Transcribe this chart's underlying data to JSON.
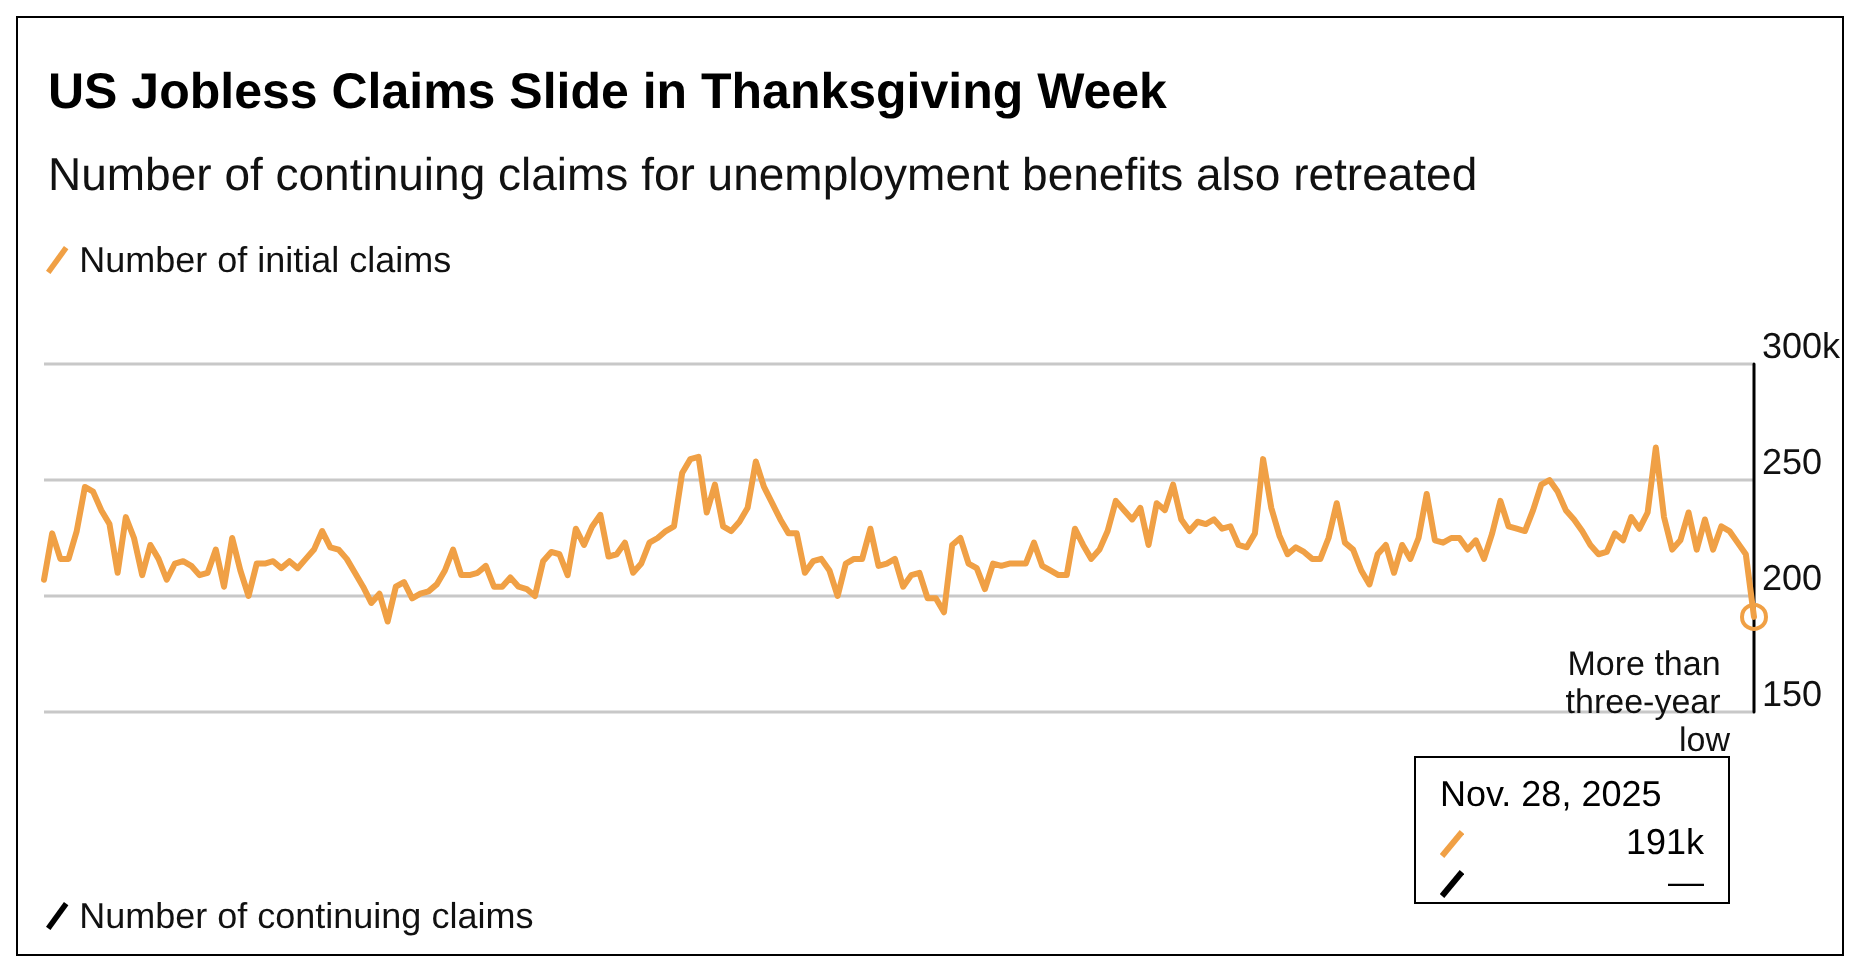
{
  "chart_data": {
    "type": "line",
    "title": "US Jobless Claims Slide in Thanksgiving Week",
    "subtitle": "Number of continuing claims for unemployment benefits also retreated",
    "categories": [
      null,
      null,
      null,
      null,
      null,
      null,
      null,
      null,
      null,
      null,
      null,
      null,
      null,
      null,
      null,
      null,
      null,
      null,
      null,
      null,
      null,
      null,
      null,
      null,
      null,
      null,
      null,
      null,
      null,
      null,
      null,
      null,
      null,
      null,
      null,
      null,
      null,
      null,
      null,
      null,
      null,
      null,
      null,
      null,
      null,
      null,
      null,
      null,
      null,
      null,
      null,
      null,
      null,
      null,
      null,
      null,
      null,
      null,
      null,
      null,
      null,
      null,
      null,
      null,
      null,
      null,
      null,
      null,
      null,
      null,
      null,
      null,
      null,
      null,
      null,
      null,
      null,
      null,
      null,
      null,
      null,
      null,
      null,
      null,
      null,
      null,
      null,
      null,
      null,
      null,
      null,
      null,
      null,
      null,
      null,
      null,
      null,
      null,
      null,
      null,
      null,
      null,
      null,
      null,
      null,
      null,
      null,
      null,
      null,
      null,
      null,
      null,
      null,
      null,
      null,
      null,
      null,
      null,
      null,
      null,
      null,
      null,
      null,
      null,
      null,
      null,
      null,
      null,
      null,
      null,
      null,
      null,
      null,
      null,
      null,
      null,
      null,
      null,
      null,
      null,
      null,
      null,
      null,
      null,
      null,
      null,
      null,
      null,
      null,
      null,
      null,
      null,
      null,
      null,
      null,
      null,
      null,
      null,
      null,
      null,
      null,
      null,
      null,
      null,
      null,
      null,
      null,
      null,
      null,
      null,
      null,
      null,
      null,
      null,
      null,
      null,
      null,
      null,
      null,
      null,
      null,
      null,
      null,
      null,
      null,
      null,
      null,
      null,
      null,
      null,
      null,
      null,
      null,
      null,
      null,
      null,
      null,
      null,
      null,
      null,
      null,
      null,
      null,
      null,
      null,
      null,
      null,
      null,
      null,
      null
    ],
    "series": [
      {
        "name": "Number of initial claims",
        "color": "#f0a045",
        "values": [
          207,
          227,
          216,
          216,
          228,
          247,
          245,
          237,
          231,
          210,
          234,
          225,
          209,
          222,
          216,
          207,
          214,
          215,
          213,
          209,
          210,
          220,
          204,
          225,
          211,
          200,
          214,
          214,
          215,
          212,
          215,
          212,
          216,
          220,
          228,
          221,
          220,
          216,
          210,
          204,
          197,
          201,
          189,
          204,
          206,
          199,
          201,
          202,
          205,
          211,
          220,
          209,
          209,
          210,
          213,
          204,
          204,
          208,
          204,
          203,
          200,
          215,
          219,
          218,
          209,
          229,
          222,
          230,
          235,
          217,
          218,
          223,
          210,
          214,
          223,
          225,
          228,
          230,
          253,
          259,
          260,
          236,
          248,
          230,
          228,
          232,
          238,
          258,
          247,
          240,
          233,
          227,
          227,
          210,
          215,
          216,
          211,
          200,
          214,
          216,
          216,
          229,
          213,
          214,
          216,
          204,
          209,
          210,
          199,
          199,
          193,
          222,
          225,
          214,
          212,
          203,
          214,
          213,
          214,
          214,
          214,
          223,
          213,
          211,
          209,
          209,
          229,
          222,
          216,
          220,
          228,
          241,
          237,
          233,
          238,
          222,
          240,
          237,
          248,
          233,
          228,
          232,
          231,
          233,
          229,
          230,
          222,
          221,
          227,
          259,
          238,
          226,
          218,
          221,
          219,
          216,
          216,
          225,
          240,
          223,
          220,
          211,
          205,
          218,
          222,
          210,
          222,
          216,
          225,
          244,
          224,
          223,
          225,
          225,
          220,
          224,
          216,
          227,
          241,
          230,
          229,
          228,
          237,
          248,
          250,
          245,
          237,
          233,
          228,
          222,
          218,
          219,
          227,
          224,
          234,
          229,
          236,
          264,
          234,
          220,
          224,
          236,
          220,
          233,
          220,
          230,
          228,
          223,
          218,
          191
        ]
      },
      {
        "name": "Number of continuing claims",
        "color": "#000000",
        "values": [
          null,
          null,
          null,
          null,
          null,
          null,
          null,
          null,
          null,
          null,
          null,
          null,
          null,
          null,
          null,
          null,
          null,
          null,
          null,
          null,
          null,
          null,
          null,
          null,
          null,
          null,
          null,
          null,
          null,
          null,
          null,
          null,
          null,
          null,
          null,
          null,
          null,
          null,
          null,
          null,
          null,
          null,
          null,
          null,
          null,
          null,
          null,
          null,
          null,
          null,
          null,
          null,
          null,
          null,
          null,
          null,
          null,
          null,
          null,
          null,
          null,
          null,
          null,
          null,
          null,
          null,
          null,
          null,
          null,
          null,
          null,
          null,
          null,
          null,
          null,
          null,
          null,
          null,
          null,
          null,
          null,
          null,
          null,
          null,
          null,
          null,
          null,
          null,
          null,
          null,
          null,
          null,
          null,
          null,
          null,
          null,
          null,
          null,
          null,
          null,
          null,
          null,
          null,
          null,
          null,
          null,
          null,
          null,
          null,
          null,
          null,
          null,
          null,
          null,
          null,
          null,
          null,
          null,
          null,
          null,
          null,
          null,
          null,
          null,
          null,
          null,
          null,
          null,
          null,
          null,
          null,
          null,
          null,
          null,
          null,
          null,
          null,
          null,
          null,
          null,
          null,
          null,
          null,
          null,
          null,
          null,
          null,
          null,
          null,
          null,
          null,
          null,
          null,
          null,
          null,
          null,
          null,
          null,
          null,
          null,
          null,
          null,
          null,
          null,
          null,
          null,
          null,
          null,
          null,
          null,
          null,
          null,
          null,
          null,
          null,
          null,
          null,
          null,
          null,
          null,
          null,
          null,
          null,
          null,
          null,
          null,
          null,
          null,
          null,
          null,
          null,
          null,
          null,
          null,
          null,
          null,
          null,
          null,
          null,
          null,
          null,
          null,
          null,
          null,
          null,
          null,
          null,
          null,
          null,
          null
        ]
      }
    ],
    "ylim": [
      150,
      300
    ],
    "yticks": [
      150,
      200,
      250,
      {
        "value": 300,
        "label": "300k"
      }
    ],
    "grid": "y",
    "legend": "left",
    "annotations": [
      "More than three-year low",
      "Nov. 28, 2025",
      "191k",
      "—"
    ]
  }
}
